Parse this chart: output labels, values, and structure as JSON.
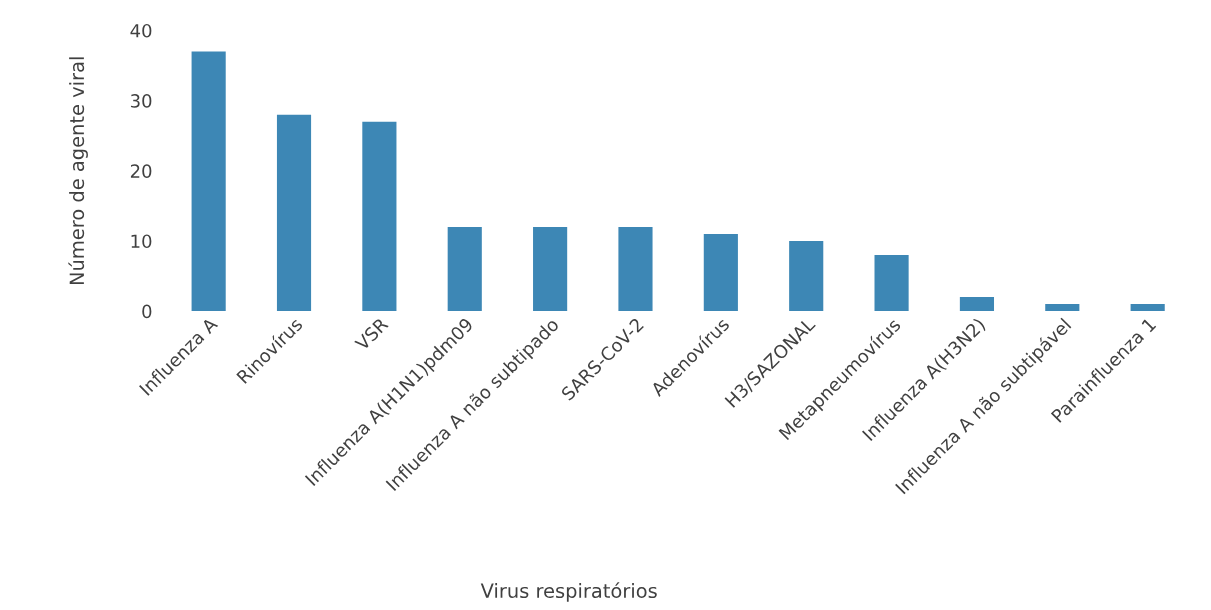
{
  "chart_data": {
    "type": "bar",
    "xlabel": "Virus respiratórios",
    "ylabel": "Número de agente viral",
    "categories": [
      "Influenza A",
      "Rinovírus",
      "VSR",
      "Influenza A(H1N1)pdm09",
      "Influenza A não subtipado",
      "SARS-CoV-2",
      "Adenovírus",
      "H3/SAZONAL",
      "Metapneumovírus",
      "Influenza A(H3N2)",
      "Influenza A não subtipável",
      "Parainfluenza 1"
    ],
    "values": [
      37,
      28,
      27,
      12,
      12,
      12,
      11,
      10,
      8,
      2,
      1,
      1
    ],
    "color": "#3d87b5",
    "ylim": [
      0,
      40
    ],
    "yticks": [
      0,
      10,
      20,
      30,
      40
    ],
    "grid": false
  }
}
